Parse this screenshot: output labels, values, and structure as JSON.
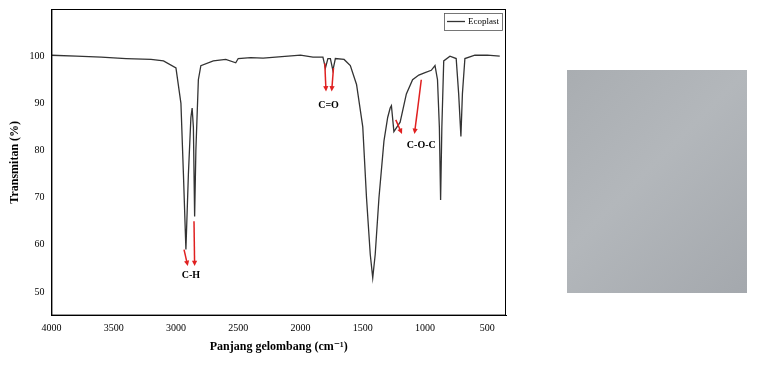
{
  "chart_data": {
    "type": "line",
    "x_label": "Panjang gelombang (cm⁻¹)",
    "y_label": "Transmitan (%)",
    "x": [
      4000,
      3800,
      3600,
      3400,
      3200,
      3100,
      3000,
      2960,
      2940,
      2920,
      2900,
      2880,
      2870,
      2860,
      2850,
      2840,
      2820,
      2800,
      2700,
      2600,
      2520,
      2500,
      2400,
      2300,
      2200,
      2000,
      1900,
      1820,
      1800,
      1780,
      1760,
      1740,
      1720,
      1650,
      1600,
      1550,
      1500,
      1470,
      1440,
      1420,
      1400,
      1370,
      1330,
      1300,
      1280,
      1270,
      1250,
      1200,
      1150,
      1100,
      1050,
      1000,
      950,
      920,
      900,
      885,
      875,
      865,
      850,
      800,
      750,
      730,
      712,
      700,
      680,
      600,
      500,
      400
    ],
    "series": [
      {
        "name": "Ecoplast",
        "color": "#333333",
        "values": [
          100.2,
          100,
          99.8,
          99.5,
          99.3,
          99,
          97.5,
          90,
          75,
          59,
          75,
          87,
          89,
          85,
          66,
          80,
          95,
          98,
          99,
          99.3,
          98.6,
          99.5,
          99.7,
          99.6,
          99.8,
          100.2,
          99.8,
          99.8,
          97.5,
          99.5,
          99.5,
          97,
          99.5,
          99.3,
          98,
          94,
          85,
          70,
          58,
          53,
          58,
          70,
          82,
          87,
          89,
          89.5,
          84,
          86,
          92,
          95,
          96,
          96.5,
          97,
          98,
          95,
          85,
          69.5,
          85,
          99,
          100,
          99.5,
          92,
          83,
          92,
          99.5,
          100.2,
          100.2,
          100
        ]
      }
    ],
    "xlim": [
      4000,
      350
    ],
    "xticks": [
      4000,
      3500,
      3000,
      2500,
      2000,
      1500,
      1000,
      500
    ],
    "ylim": [
      45,
      110
    ],
    "yticks": [
      50,
      60,
      70,
      80,
      90,
      100
    ],
    "grid": false,
    "legend": "upper right",
    "annotations": [
      {
        "text": "C-H",
        "x": 2880,
        "y": 53.5,
        "color": "#e02020",
        "arrows": [
          [
            2935,
            59,
            2905,
            55.5
          ],
          [
            2855,
            65,
            2850,
            55.5
          ]
        ]
      },
      {
        "text": "C=O",
        "x": 1775,
        "y": 89.5,
        "color": "#e02020",
        "arrows": [
          [
            1805,
            98.5,
            1795,
            92.5
          ],
          [
            1735,
            97.5,
            1750,
            92.5
          ]
        ]
      },
      {
        "text": "C-O-C",
        "x": 1030,
        "y": 81,
        "color": "#e02020",
        "arrows": [
          [
            1235,
            86.5,
            1185,
            83.5
          ],
          [
            1030,
            95,
            1085,
            83.5
          ]
        ]
      }
    ]
  }
}
